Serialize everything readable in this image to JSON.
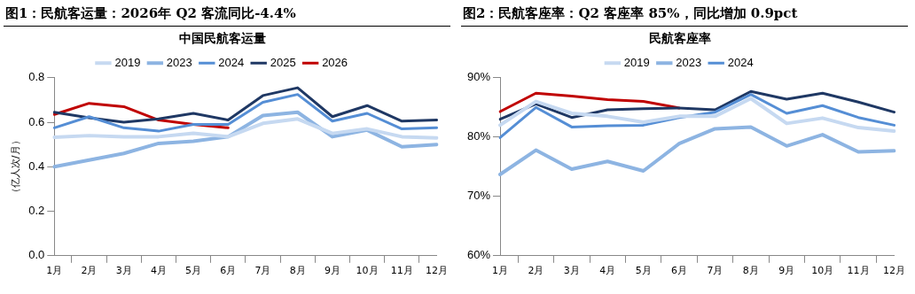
{
  "chart_data": [
    {
      "type": "line",
      "title": "图1：民航客运量：2026年 Q2 客流同比-4.4%",
      "subtitle": "中国民航客运量",
      "ylabel": "（亿人次/月）",
      "categories": [
        "1月",
        "2月",
        "3月",
        "4月",
        "5月",
        "6月",
        "7月",
        "8月",
        "9月",
        "10月",
        "11月",
        "12月"
      ],
      "series": [
        {
          "name": "2019",
          "color": "#c6d9f1",
          "values": [
            0.533,
            0.54,
            0.535,
            0.535,
            0.55,
            0.535,
            0.595,
            0.615,
            0.55,
            0.57,
            0.535,
            0.53
          ]
        },
        {
          "name": "2023",
          "color": "#8db4e2",
          "values": [
            0.4,
            0.43,
            0.46,
            0.505,
            0.515,
            0.535,
            0.63,
            0.645,
            0.535,
            0.565,
            0.49,
            0.5
          ]
        },
        {
          "name": "2024",
          "color": "#558ed5",
          "values": [
            0.575,
            0.625,
            0.575,
            0.56,
            0.59,
            0.59,
            0.69,
            0.725,
            0.605,
            0.64,
            0.57,
            0.575
          ]
        },
        {
          "name": "2025",
          "color": "#1f3864",
          "values": [
            0.645,
            0.62,
            0.6,
            0.615,
            0.64,
            0.61,
            0.72,
            0.755,
            0.625,
            0.675,
            0.605,
            0.61
          ]
        },
        {
          "name": "2026",
          "color": "#c00000",
          "values": [
            0.635,
            0.685,
            0.67,
            0.61,
            0.59,
            0.575,
            null,
            null,
            null,
            null,
            null,
            null
          ]
        }
      ],
      "ylim": [
        0,
        0.8
      ],
      "yticks": [
        {
          "value": 0,
          "label": "0.0"
        },
        {
          "value": 0.2,
          "label": "0.2"
        },
        {
          "value": 0.4,
          "label": "0.4"
        },
        {
          "value": 0.6,
          "label": "0.6"
        },
        {
          "value": 0.8,
          "label": "0.8"
        }
      ],
      "grid": false,
      "legend": "top",
      "marker": "none",
      "line_style": "solid"
    },
    {
      "type": "line",
      "title": "图2：民航客座率：Q2 客座率 85%，同比增加 0.9pct",
      "subtitle": "民航客座率",
      "categories": [
        "1月",
        "2月",
        "3月",
        "4月",
        "5月",
        "6月",
        "7月",
        "8月",
        "9月",
        "10月",
        "11月",
        "12月"
      ],
      "series": [
        {
          "name": "2019",
          "color": "#c6d9f1",
          "values": [
            82.0,
            86.0,
            84.0,
            83.5,
            82.5,
            83.5,
            83.5,
            86.5,
            82.3,
            83.2,
            81.6,
            81.0
          ]
        },
        {
          "name": "2023",
          "color": "#8db4e2",
          "values": [
            73.7,
            77.8,
            74.6,
            75.9,
            74.3,
            78.9,
            81.4,
            81.7,
            78.5,
            80.4,
            77.5,
            77.7
          ]
        },
        {
          "name": "2024",
          "color": "#558ed5",
          "values": [
            79.9,
            85.0,
            81.7,
            81.9,
            82.0,
            83.3,
            84.2,
            87.2,
            84.0,
            85.3,
            83.3,
            82.0
          ]
        },
        {
          "color": "#1f3864",
          "values": [
            83.0,
            85.6,
            83.3,
            84.6,
            84.8,
            84.9,
            84.6,
            87.7,
            86.4,
            87.4,
            85.9,
            84.2
          ]
        },
        {
          "color": "#c00000",
          "values": [
            84.3,
            87.4,
            86.9,
            86.3,
            86.0,
            84.9,
            null,
            null,
            null,
            null,
            null,
            null
          ]
        }
      ],
      "ylim": [
        60,
        90
      ],
      "yticks": [
        {
          "value": 60,
          "label": "60%"
        },
        {
          "value": 70,
          "label": "70%"
        },
        {
          "value": 80,
          "label": "80%"
        },
        {
          "value": 90,
          "label": "90%"
        }
      ],
      "grid": false,
      "legend": "top",
      "marker": "none",
      "line_style": "solid"
    }
  ]
}
